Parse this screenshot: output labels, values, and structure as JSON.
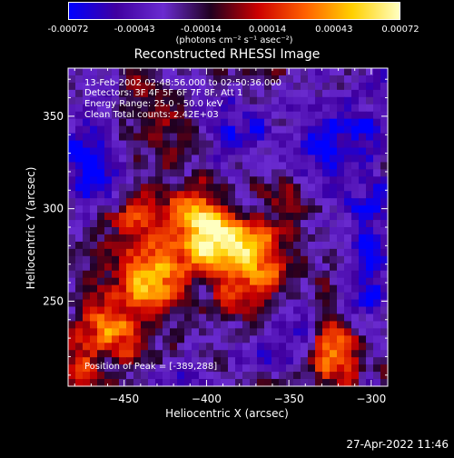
{
  "colorbar": {
    "ticks": [
      "-0.00072",
      "-0.00043",
      "-0.00014",
      "0.00014",
      "0.00043",
      "0.00072"
    ],
    "units": "(photons cm⁻² s⁻¹ asec⁻²)",
    "range": [
      -0.00072,
      0.00072
    ]
  },
  "annotations": {
    "time_range": "13-Feb-2002 02:48:56.000 to 02:50:36.000",
    "detectors": "Detectors: 3F 4F 5F 6F 7F 8F, Att 1",
    "energy": "Energy Range: 25.0 - 50.0 keV",
    "clean": "Clean     Total counts: 2.42E+03",
    "peak": "Position of Peak = [-389,288]"
  },
  "footer": {
    "date": "27-Apr-2022 11:46"
  },
  "chart_data": {
    "type": "heatmap",
    "title": "Reconstructed RHESSI Image",
    "xlabel": "Heliocentric X (arcsec)",
    "ylabel": "Heliocentric Y (arcsec)",
    "xlim": [
      -484,
      -290
    ],
    "ylim": [
      204,
      376
    ],
    "xticks": [
      -450,
      -400,
      -350,
      -300
    ],
    "xtick_labels": [
      "−450",
      "−400",
      "−350",
      "−300"
    ],
    "yticks": [
      250,
      300,
      350
    ],
    "ytick_labels": [
      "250",
      "300",
      "350"
    ],
    "colormap": [
      "#0000ff",
      "#4000a0",
      "#6a2bd0",
      "#200020",
      "#cc0000",
      "#ff6000",
      "#ffd000",
      "#ffffc0"
    ],
    "peak": [
      -389,
      288
    ],
    "sources": [
      {
        "x": -395,
        "y": 282,
        "sx": 18,
        "sy": 11,
        "amp": 1.0
      },
      {
        "x": -432,
        "y": 260,
        "sx": 16,
        "sy": 12,
        "amp": 0.85
      },
      {
        "x": -408,
        "y": 300,
        "sx": 14,
        "sy": 9,
        "amp": 0.7
      },
      {
        "x": -458,
        "y": 236,
        "sx": 14,
        "sy": 12,
        "amp": 0.6
      },
      {
        "x": -365,
        "y": 272,
        "sx": 16,
        "sy": 14,
        "amp": 0.55
      },
      {
        "x": -325,
        "y": 222,
        "sx": 10,
        "sy": 14,
        "amp": 0.85
      },
      {
        "x": -445,
        "y": 292,
        "sx": 12,
        "sy": 10,
        "amp": 0.45
      },
      {
        "x": -475,
        "y": 212,
        "sx": 8,
        "sy": 8,
        "amp": 0.6
      },
      {
        "x": -380,
        "y": 250,
        "sx": 14,
        "sy": 10,
        "amp": 0.35
      },
      {
        "x": -350,
        "y": 305,
        "sx": 10,
        "sy": 10,
        "amp": 0.3
      },
      {
        "x": -430,
        "y": 350,
        "sx": 18,
        "sy": 12,
        "amp": 0.2
      }
    ],
    "negative_sources": [
      {
        "x": -470,
        "y": 330,
        "sx": 14,
        "sy": 20,
        "amp": 0.6
      },
      {
        "x": -315,
        "y": 330,
        "sx": 20,
        "sy": 25,
        "amp": 0.55
      },
      {
        "x": -300,
        "y": 265,
        "sx": 12,
        "sy": 20,
        "amp": 0.5
      },
      {
        "x": -350,
        "y": 230,
        "sx": 20,
        "sy": 14,
        "amp": 0.45
      },
      {
        "x": -380,
        "y": 345,
        "sx": 20,
        "sy": 14,
        "amp": 0.4
      },
      {
        "x": -410,
        "y": 210,
        "sx": 16,
        "sy": 8,
        "amp": 0.3
      }
    ]
  }
}
